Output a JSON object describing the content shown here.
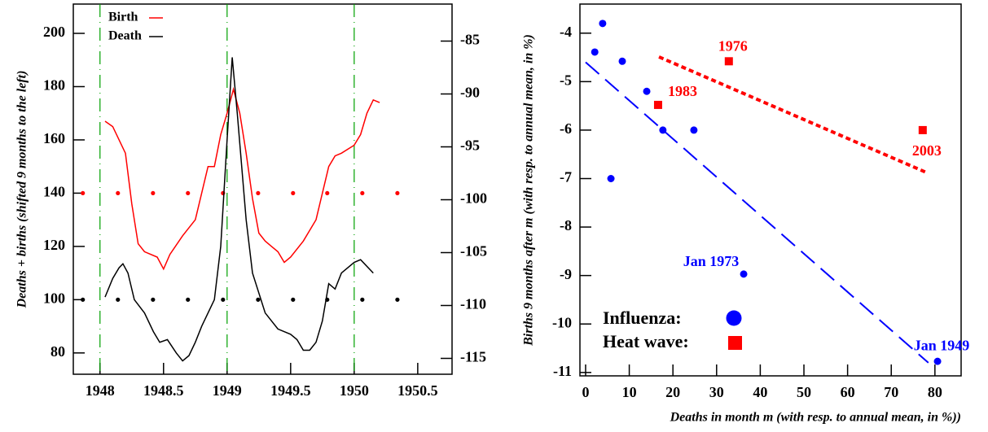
{
  "chart_data": [
    {
      "type": "line",
      "ylabel": "Deaths + births (shifted 9 months to the left)",
      "xlim": [
        1947.79,
        1950.77
      ],
      "xticks": [
        1948,
        1948.5,
        1949,
        1949.5,
        1950,
        1950.5
      ],
      "ylim": [
        72,
        211
      ],
      "yticks": [
        80,
        100,
        120,
        140,
        160,
        180,
        200
      ],
      "y2lim": [
        -116.5,
        -81.5
      ],
      "y2ticks": [
        -85,
        -90,
        -95,
        -100,
        -105,
        -110,
        -115
      ],
      "legend": "upper left",
      "vlines": [
        1948,
        1949,
        1950
      ],
      "vline_color": "#00a000",
      "series": [
        {
          "name": "Birth",
          "color": "#ff0000",
          "x": [
            1948.04,
            1948.1,
            1948.2,
            1948.25,
            1948.3,
            1948.35,
            1948.45,
            1948.5,
            1948.55,
            1948.65,
            1948.75,
            1948.8,
            1948.85,
            1948.9,
            1948.95,
            1949.0,
            1949.05,
            1949.1,
            1949.15,
            1949.2,
            1949.25,
            1949.3,
            1949.35,
            1949.4,
            1949.45,
            1949.5,
            1949.6,
            1949.7,
            1949.75,
            1949.8,
            1949.85,
            1949.9,
            1950.0,
            1950.05,
            1950.1,
            1950.15,
            1950.2
          ],
          "values": [
            167,
            165,
            155,
            136,
            121,
            118,
            116,
            111.5,
            117,
            124,
            130,
            140,
            150,
            150,
            162,
            170,
            179,
            170,
            155,
            138,
            125,
            122,
            120,
            118,
            114,
            116,
            122,
            130,
            140,
            150,
            154,
            155,
            158,
            162,
            170,
            175,
            174
          ]
        },
        {
          "name": "Death",
          "color": "#000000",
          "x": [
            1948.04,
            1948.1,
            1948.15,
            1948.18,
            1948.22,
            1948.27,
            1948.35,
            1948.42,
            1948.47,
            1948.53,
            1948.6,
            1948.65,
            1948.7,
            1948.75,
            1948.8,
            1948.85,
            1948.9,
            1948.95,
            1949.0,
            1949.04,
            1949.08,
            1949.15,
            1949.2,
            1949.3,
            1949.4,
            1949.5,
            1949.55,
            1949.6,
            1949.65,
            1949.7,
            1949.75,
            1949.8,
            1949.85,
            1949.9,
            1950.0,
            1950.05,
            1950.15
          ],
          "values": [
            101,
            108,
            112,
            113.5,
            110,
            100,
            95,
            88,
            84,
            85,
            80,
            77,
            79,
            84,
            90,
            95,
            100,
            120,
            160,
            191,
            170,
            130,
            110,
            95,
            89,
            87,
            85,
            81,
            81,
            84,
            92,
            106,
            104,
            110,
            114,
            115,
            110
          ]
        }
      ],
      "marker_x": [
        1947.865,
        1948.141,
        1948.417,
        1948.692,
        1948.968,
        1949.244,
        1949.519,
        1949.788,
        1950.064,
        1950.34
      ],
      "markers": [
        {
          "color": "#ff0000",
          "value": 140
        },
        {
          "color": "#000000",
          "value": 100
        }
      ]
    },
    {
      "type": "scatter",
      "xlabel": "Deaths in month m (with resp. to annual mean, in %))",
      "ylabel": "Births  9 months after m (with resp. to annual mean, in %)",
      "xlim": [
        -1.3,
        86
      ],
      "xticks": [
        0,
        10,
        20,
        30,
        40,
        50,
        60,
        70,
        80
      ],
      "ylim": [
        -11.07,
        -3.4
      ],
      "yticks": [
        -4,
        -5,
        -6,
        -7,
        -8,
        -9,
        -10,
        -11
      ],
      "legend": "lower left",
      "series": [
        {
          "name": "Influenza:",
          "color": "#0000ff",
          "marker": "circle",
          "line_style": "dashed",
          "x": [
            2.1,
            3.9,
            8.4,
            14,
            17.7,
            24.8,
            5.8,
            36.2,
            80.6
          ],
          "values": [
            -4.39,
            -3.8,
            -4.58,
            -5.2,
            -6,
            -6,
            -7,
            -8.97,
            -10.77
          ],
          "point_labels": [
            null,
            null,
            null,
            null,
            null,
            null,
            null,
            "Jan 1973",
            "Jan 1949"
          ],
          "fit": {
            "x": [
              0,
              78.5
            ],
            "values": [
              -4.6,
              -10.8
            ]
          }
        },
        {
          "name": "Heat wave:",
          "color": "#ff0000",
          "marker": "square",
          "line_style": "dotted",
          "x": [
            16.6,
            32.8,
            77.2
          ],
          "values": [
            -5.48,
            -4.58,
            -6
          ],
          "point_labels": [
            "1983",
            "1976",
            "2003"
          ],
          "fit": {
            "x": [
              16.8,
              78.2
            ],
            "values": [
              -4.49,
              -6.88
            ]
          }
        }
      ]
    }
  ]
}
